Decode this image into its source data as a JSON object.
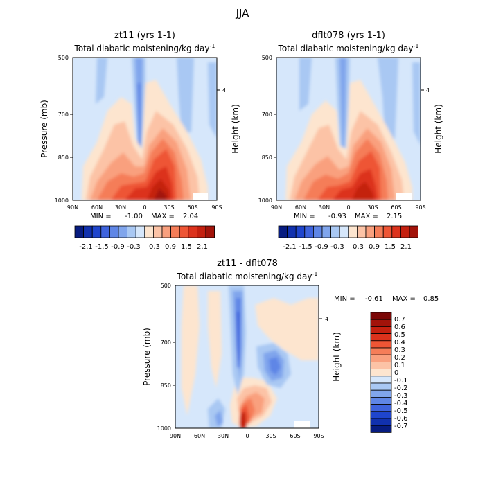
{
  "figure_title": "JJA",
  "colors": {
    "positive_scale": [
      "#fde5cf",
      "#fcc3a6",
      "#f9a07e",
      "#f57d58",
      "#ee5535",
      "#dc321c",
      "#c4200f",
      "#a2130a",
      "#7b0706"
    ],
    "negative_scale": [
      "#d6e7fb",
      "#a9c8f3",
      "#80a5ec",
      "#5f86e6",
      "#3e63dd",
      "#1f45cd",
      "#1131ae",
      "#071c80"
    ],
    "background_field": "#d6e7fb"
  },
  "chart_data": [
    {
      "type": "heatmap",
      "id": "zt11",
      "title": "zt11 (yrs 1-1)",
      "subtitle": "Total diabatic moistening",
      "unit_text": "/kg day",
      "unit_exp": "-1",
      "xlabel": "",
      "ylabel": "Pressure (mb)",
      "y2label": "Height (km)",
      "x_ticks": [
        "90N",
        "60N",
        "30N",
        "0",
        "30S",
        "60S",
        "90S"
      ],
      "y_ticks": [
        "500",
        "700",
        "850",
        "1000"
      ],
      "y_ticks_values": [
        500,
        700,
        850,
        1000
      ],
      "y2_ticks": [
        "4"
      ],
      "ylim": [
        1000,
        500
      ],
      "xlim": [
        "90N",
        "90S"
      ],
      "min_label": "MIN =",
      "min": "-1.00",
      "max_label": "MAX =",
      "max": "2.04",
      "colorbar_labels": [
        "-2.1",
        "-1.5",
        "-0.9",
        "-0.3",
        "0.3",
        "0.9",
        "1.5",
        "2.1"
      ],
      "colorbar_levels": [
        -2.4,
        -2.1,
        -1.8,
        -1.5,
        -1.2,
        -0.9,
        -0.6,
        -0.3,
        0,
        0.3,
        0.6,
        0.9,
        1.2,
        1.5,
        1.8,
        2.1,
        2.4
      ]
    },
    {
      "type": "heatmap",
      "id": "dflt078",
      "title": "dflt078 (yrs 1-1)",
      "subtitle": "Total diabatic moistening",
      "unit_text": "/kg day",
      "unit_exp": "-1",
      "xlabel": "",
      "ylabel": "",
      "y2label": "Height (km)",
      "x_ticks": [
        "90N",
        "60N",
        "30N",
        "0",
        "30S",
        "60S",
        "90S"
      ],
      "y_ticks": [
        "500",
        "700",
        "850",
        "1000"
      ],
      "y_ticks_values": [
        500,
        700,
        850,
        1000
      ],
      "y2_ticks": [
        "4"
      ],
      "ylim": [
        1000,
        500
      ],
      "xlim": [
        "90N",
        "90S"
      ],
      "min_label": "MIN =",
      "min": "-0.93",
      "max_label": "MAX =",
      "max": "2.15",
      "colorbar_labels": [
        "-2.1",
        "-1.5",
        "-0.9",
        "-0.3",
        "0.3",
        "0.9",
        "1.5",
        "2.1"
      ],
      "colorbar_levels": [
        -2.4,
        -2.1,
        -1.8,
        -1.5,
        -1.2,
        -0.9,
        -0.6,
        -0.3,
        0,
        0.3,
        0.6,
        0.9,
        1.2,
        1.5,
        1.8,
        2.1,
        2.4
      ]
    },
    {
      "type": "heatmap",
      "id": "difference",
      "title": "zt11 - dflt078",
      "subtitle": "Total diabatic moistening",
      "unit_text": "/kg day",
      "unit_exp": "-1",
      "xlabel": "",
      "ylabel": "Pressure (mb)",
      "y2label": "Height (km)",
      "x_ticks": [
        "90N",
        "60N",
        "30N",
        "0",
        "30S",
        "60S",
        "90S"
      ],
      "y_ticks": [
        "500",
        "700",
        "850",
        "1000"
      ],
      "y_ticks_values": [
        500,
        700,
        850,
        1000
      ],
      "y2_ticks": [
        "4"
      ],
      "ylim": [
        1000,
        500
      ],
      "xlim": [
        "90N",
        "90S"
      ],
      "min_label": "MIN =",
      "min": "-0.61",
      "max_label": "MAX =",
      "max": "0.85",
      "colorbar_labels": [
        "0.7",
        "0.6",
        "0.5",
        "0.4",
        "0.3",
        "0.2",
        "0.1",
        "0",
        "-0.1",
        "-0.2",
        "-0.3",
        "-0.4",
        "-0.5",
        "-0.6",
        "-0.7"
      ]
    }
  ]
}
